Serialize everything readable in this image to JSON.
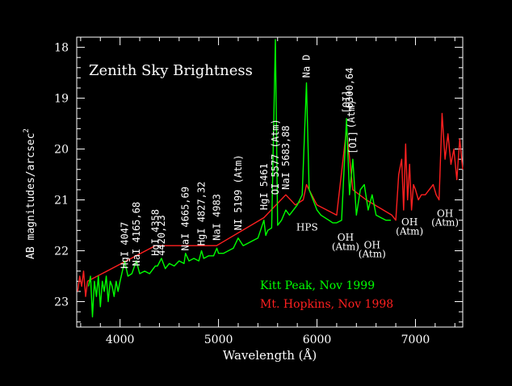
{
  "chart_data": {
    "type": "line",
    "title": "Zenith Sky Brightness",
    "xlabel": "Wavelength (Å)",
    "ylabel_main": "AB magnitudes/arcsec",
    "ylabel_sup": "2",
    "xlim": [
      3560,
      7480
    ],
    "ylim": [
      23.5,
      17.8
    ],
    "y_inverted": true,
    "xticks": [
      4000,
      5000,
      6000,
      7000
    ],
    "xtick_labels": [
      "4000",
      "5000",
      "6000",
      "7000"
    ],
    "yticks": [
      18,
      19,
      20,
      21,
      22,
      23
    ],
    "ytick_labels": [
      "18",
      "19",
      "20",
      "21",
      "22",
      "23"
    ],
    "grid": false,
    "legend_position": "bottom-right",
    "series": [
      {
        "name": "Kitt Peak, Nov 1999",
        "color": "#00ff00",
        "x": [
          3680,
          3700,
          3720,
          3740,
          3760,
          3780,
          3800,
          3820,
          3840,
          3860,
          3880,
          3900,
          3920,
          3940,
          3960,
          3980,
          4000,
          4047,
          4080,
          4120,
          4165,
          4200,
          4250,
          4300,
          4358,
          4380,
          4420,
          4460,
          4500,
          4550,
          4600,
          4650,
          4665,
          4700,
          4750,
          4800,
          4827,
          4850,
          4900,
          4950,
          4983,
          5000,
          5050,
          5100,
          5150,
          5199,
          5250,
          5300,
          5350,
          5400,
          5461,
          5480,
          5500,
          5540,
          5577,
          5600,
          5640,
          5683,
          5720,
          5760,
          5800,
          5850,
          5893,
          5920,
          5960,
          6000,
          6040,
          6080,
          6120,
          6160,
          6200,
          6250,
          6300,
          6330,
          6364,
          6400,
          6440,
          6480,
          6520,
          6560,
          6600,
          6650,
          6700,
          6750
        ],
        "values": [
          22.7,
          22.5,
          23.3,
          22.6,
          22.9,
          22.5,
          23.1,
          22.6,
          22.8,
          22.5,
          23.0,
          22.6,
          22.7,
          22.9,
          22.6,
          22.8,
          22.6,
          22.2,
          22.5,
          22.45,
          22.2,
          22.45,
          22.4,
          22.45,
          22.3,
          22.3,
          22.15,
          22.35,
          22.25,
          22.3,
          22.2,
          22.25,
          22.05,
          22.2,
          22.15,
          22.2,
          22.0,
          22.15,
          22.1,
          22.1,
          21.95,
          22.05,
          22.05,
          22.0,
          21.95,
          21.75,
          21.9,
          21.85,
          21.8,
          21.75,
          21.4,
          21.7,
          21.6,
          21.55,
          17.85,
          21.5,
          21.4,
          21.2,
          21.3,
          21.2,
          21.1,
          20.9,
          18.7,
          20.8,
          21.0,
          21.2,
          21.3,
          21.35,
          21.4,
          21.45,
          21.45,
          21.4,
          19.4,
          20.9,
          20.2,
          21.3,
          20.8,
          20.7,
          21.2,
          20.9,
          21.3,
          21.35,
          21.4,
          21.4
        ]
      },
      {
        "name": "Mt. Hopkins, Nov 1998",
        "color": "#ff2020",
        "x": [
          3570,
          3590,
          3610,
          3630,
          3650,
          3670,
          4358,
          4980,
          5460,
          5683,
          5780,
          5860,
          5893,
          6000,
          6200,
          6300,
          6364,
          6500,
          6760,
          6800,
          6830,
          6860,
          6880,
          6900,
          6920,
          6940,
          6960,
          6980,
          7000,
          7030,
          7060,
          7100,
          7140,
          7180,
          7210,
          7240,
          7270,
          7300,
          7330,
          7360,
          7390,
          7420,
          7450,
          7480
        ],
        "values": [
          22.8,
          22.5,
          22.7,
          22.4,
          22.9,
          22.6,
          21.9,
          21.9,
          21.35,
          20.9,
          21.1,
          21.0,
          20.7,
          21.1,
          21.3,
          19.6,
          20.8,
          21.0,
          21.3,
          21.4,
          20.5,
          20.2,
          21.2,
          19.9,
          21.0,
          20.3,
          21.2,
          20.7,
          20.8,
          21.0,
          20.9,
          20.9,
          20.8,
          20.7,
          20.9,
          21.0,
          19.3,
          20.2,
          19.7,
          20.3,
          20.0,
          20.6,
          19.8,
          20.4
        ]
      }
    ],
    "line_labels": [
      {
        "text": "HgI 4047",
        "x": 4047,
        "y": 22.35,
        "rotated": true
      },
      {
        "text": "NaI 4165,68",
        "x": 4165,
        "y": 22.3,
        "rotated": true
      },
      {
        "text": "HgI 4358",
        "x": 4358,
        "y": 22.1,
        "rotated": true
      },
      {
        "text": "4420,23",
        "x": 4420,
        "y": 22.1,
        "rotated": true
      },
      {
        "text": "NaI 4665,69",
        "x": 4665,
        "y": 22.0,
        "rotated": true
      },
      {
        "text": "HgI 4827,32",
        "x": 4827,
        "y": 21.9,
        "rotated": true
      },
      {
        "text": "NaI 4983",
        "x": 4983,
        "y": 21.8,
        "rotated": true
      },
      {
        "text": "NI 5199 (Atm)",
        "x": 5199,
        "y": 21.6,
        "rotated": true
      },
      {
        "text": "HgI 5461",
        "x": 5461,
        "y": 21.2,
        "rotated": true
      },
      {
        "text": "OI 5577 (Atm)",
        "x": 5577,
        "y": 20.9,
        "rotated": true
      },
      {
        "text": "NaI 5683,88",
        "x": 5683,
        "y": 20.8,
        "rotated": true
      },
      {
        "text": "Na D",
        "x": 5893,
        "y": 18.6,
        "rotated": true
      },
      {
        "text": "[OI]",
        "x": 6300,
        "y": 19.3,
        "rotated": true
      },
      {
        "text": "6300,64",
        "x": 6330,
        "y": 19.2,
        "rotated": true
      },
      {
        "text": "(Atm)",
        "x": 6350,
        "y": 19.6,
        "rotated": true
      },
      {
        "text": "[OI]",
        "x": 6364,
        "y": 20.1,
        "rotated": true
      }
    ],
    "annotations": [
      {
        "text": "HPS",
        "x": 5900,
        "y": 21.6
      },
      {
        "text": "OH",
        "x": 6290,
        "y": 21.8
      },
      {
        "text": "(Atm)",
        "x": 6290,
        "y": 21.98
      },
      {
        "text": "OH",
        "x": 6560,
        "y": 21.95
      },
      {
        "text": "(Atm)",
        "x": 6560,
        "y": 22.13
      },
      {
        "text": "OH",
        "x": 6940,
        "y": 21.5
      },
      {
        "text": "(Atm)",
        "x": 6940,
        "y": 21.68
      },
      {
        "text": "OH",
        "x": 7300,
        "y": 21.33
      },
      {
        "text": "(Atm)",
        "x": 7300,
        "y": 21.51
      }
    ]
  }
}
